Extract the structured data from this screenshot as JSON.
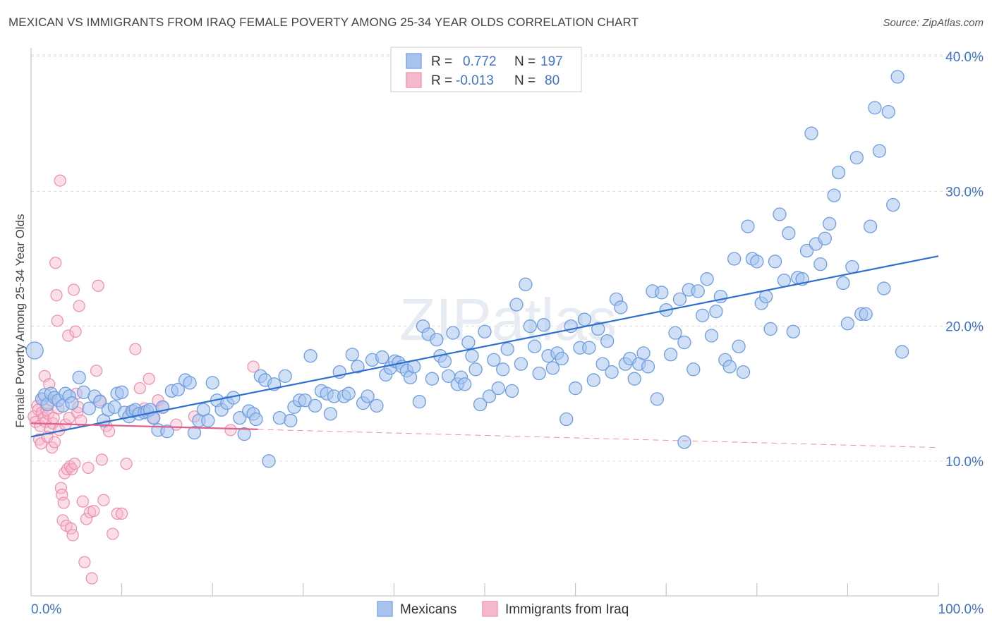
{
  "title": "MEXICAN VS IMMIGRANTS FROM IRAQ FEMALE POVERTY AMONG 25-34 YEAR OLDS CORRELATION CHART",
  "source": "Source: ZipAtlas.com",
  "watermark": "ZIPatlas",
  "colors": {
    "mexicans_fill": "#a8c4ee",
    "mexicans_stroke": "#6f9de0",
    "mexicans_line": "#2f6fd0",
    "iraq_fill": "#f6b9cb",
    "iraq_stroke": "#ec8eab",
    "iraq_line": "#e0608a",
    "tick_label": "#3f72c9",
    "grid": "#dddddd"
  },
  "legend": {
    "rows": [
      {
        "r_label": "R =",
        "r_value": "0.772",
        "n_label": "N =",
        "n_value": "197"
      },
      {
        "r_label": "R =",
        "r_value": "-0.013",
        "n_label": "N =",
        "n_value": "80"
      }
    ]
  },
  "chart_data": {
    "type": "scatter",
    "title": "MEXICAN VS IMMIGRANTS FROM IRAQ FEMALE POVERTY AMONG 25-34 YEAR OLDS CORRELATION CHART",
    "xlabel": "",
    "ylabel": "Female Poverty Among 25-34 Year Olds",
    "xlim": [
      0,
      100
    ],
    "ylim": [
      0,
      40
    ],
    "x_tick_labels": [
      "0.0%",
      "100.0%"
    ],
    "y_ticks": [
      10,
      20,
      30,
      40
    ],
    "y_tick_labels": [
      "10.0%",
      "20.0%",
      "30.0%",
      "40.0%"
    ],
    "grid": true,
    "legend_position": "top-center",
    "series": [
      {
        "name": "Mexicans",
        "r": 0.772,
        "n": 197,
        "trend": {
          "x": [
            0,
            100
          ],
          "y": [
            11.8,
            25.2
          ]
        },
        "points": [
          [
            0.4,
            18.2
          ],
          [
            1.2,
            14.6
          ],
          [
            1.5,
            14.9
          ],
          [
            1.8,
            14.2
          ],
          [
            2.2,
            15.0
          ],
          [
            2.6,
            14.7
          ],
          [
            3.0,
            14.5
          ],
          [
            3.5,
            14.1
          ],
          [
            3.8,
            15.0
          ],
          [
            4.2,
            14.8
          ],
          [
            4.5,
            14.3
          ],
          [
            5.3,
            16.2
          ],
          [
            5.8,
            15.1
          ],
          [
            6.4,
            13.9
          ],
          [
            7.0,
            14.8
          ],
          [
            7.6,
            14.4
          ],
          [
            8.0,
            13.0
          ],
          [
            8.5,
            13.8
          ],
          [
            9.2,
            14.0
          ],
          [
            9.5,
            15.0
          ],
          [
            10.0,
            15.1
          ],
          [
            10.3,
            13.6
          ],
          [
            10.8,
            13.3
          ],
          [
            11.2,
            13.7
          ],
          [
            11.5,
            13.8
          ],
          [
            11.9,
            13.5
          ],
          [
            12.5,
            13.6
          ],
          [
            12.8,
            13.7
          ],
          [
            13.1,
            13.8
          ],
          [
            13.5,
            13.2
          ],
          [
            14.0,
            12.3
          ],
          [
            14.5,
            14.0
          ],
          [
            15.0,
            12.2
          ],
          [
            15.5,
            15.2
          ],
          [
            16.2,
            15.3
          ],
          [
            17.0,
            16.0
          ],
          [
            17.5,
            15.8
          ],
          [
            18.0,
            12.1
          ],
          [
            18.5,
            13.0
          ],
          [
            19.0,
            13.8
          ],
          [
            19.5,
            13.0
          ],
          [
            20.0,
            15.8
          ],
          [
            20.5,
            14.5
          ],
          [
            21.0,
            13.8
          ],
          [
            21.6,
            14.3
          ],
          [
            22.3,
            14.7
          ],
          [
            23.0,
            13.2
          ],
          [
            23.5,
            12.0
          ],
          [
            24.0,
            13.7
          ],
          [
            24.5,
            13.5
          ],
          [
            24.8,
            13.1
          ],
          [
            25.3,
            16.3
          ],
          [
            25.8,
            16.0
          ],
          [
            26.2,
            10.0
          ],
          [
            26.8,
            15.7
          ],
          [
            27.4,
            13.2
          ],
          [
            28.0,
            16.3
          ],
          [
            28.6,
            13.0
          ],
          [
            29.0,
            14.0
          ],
          [
            29.6,
            14.5
          ],
          [
            30.2,
            14.5
          ],
          [
            30.8,
            17.8
          ],
          [
            31.3,
            14.1
          ],
          [
            32.0,
            15.2
          ],
          [
            32.6,
            15.0
          ],
          [
            33.0,
            13.5
          ],
          [
            33.4,
            14.8
          ],
          [
            34.0,
            16.6
          ],
          [
            34.5,
            14.8
          ],
          [
            35.0,
            15.0
          ],
          [
            35.4,
            17.9
          ],
          [
            36.0,
            17.0
          ],
          [
            36.6,
            14.3
          ],
          [
            37.1,
            14.8
          ],
          [
            37.6,
            17.5
          ],
          [
            38.1,
            14.1
          ],
          [
            38.7,
            17.7
          ],
          [
            39.1,
            16.4
          ],
          [
            39.6,
            16.9
          ],
          [
            40.1,
            17.4
          ],
          [
            40.5,
            17.3
          ],
          [
            40.9,
            17.0
          ],
          [
            41.4,
            16.7
          ],
          [
            41.8,
            16.2
          ],
          [
            42.2,
            17.0
          ],
          [
            42.8,
            14.4
          ],
          [
            43.2,
            20.0
          ],
          [
            43.8,
            19.4
          ],
          [
            44.2,
            16.1
          ],
          [
            44.7,
            19.0
          ],
          [
            45.1,
            17.8
          ],
          [
            45.6,
            17.4
          ],
          [
            46.0,
            16.3
          ],
          [
            46.5,
            19.5
          ],
          [
            47.0,
            15.7
          ],
          [
            47.4,
            16.2
          ],
          [
            47.8,
            15.7
          ],
          [
            48.2,
            18.8
          ],
          [
            48.6,
            17.8
          ],
          [
            49.0,
            16.8
          ],
          [
            49.5,
            14.2
          ],
          [
            50.0,
            19.6
          ],
          [
            50.5,
            14.8
          ],
          [
            51.0,
            17.5
          ],
          [
            51.5,
            15.4
          ],
          [
            52.0,
            16.8
          ],
          [
            52.5,
            18.3
          ],
          [
            53.0,
            15.2
          ],
          [
            53.5,
            21.6
          ],
          [
            54.0,
            17.2
          ],
          [
            54.5,
            23.1
          ],
          [
            55.0,
            20.0
          ],
          [
            55.5,
            18.5
          ],
          [
            56.0,
            16.5
          ],
          [
            56.5,
            20.1
          ],
          [
            57.0,
            17.8
          ],
          [
            57.5,
            16.9
          ],
          [
            58.0,
            18.0
          ],
          [
            58.5,
            17.6
          ],
          [
            59.0,
            13.1
          ],
          [
            59.5,
            20.0
          ],
          [
            60.0,
            15.4
          ],
          [
            60.5,
            18.4
          ],
          [
            61.0,
            20.5
          ],
          [
            61.5,
            18.4
          ],
          [
            62.0,
            16.0
          ],
          [
            62.5,
            19.8
          ],
          [
            63.0,
            17.2
          ],
          [
            63.5,
            18.9
          ],
          [
            64.0,
            16.6
          ],
          [
            64.5,
            22.0
          ],
          [
            65.0,
            21.4
          ],
          [
            65.5,
            17.2
          ],
          [
            66.0,
            17.6
          ],
          [
            66.5,
            16.1
          ],
          [
            67.0,
            17.2
          ],
          [
            67.5,
            18.0
          ],
          [
            68.0,
            17.0
          ],
          [
            68.5,
            22.6
          ],
          [
            69.0,
            14.6
          ],
          [
            69.5,
            22.5
          ],
          [
            70.0,
            21.2
          ],
          [
            70.5,
            17.9
          ],
          [
            71.0,
            19.5
          ],
          [
            71.5,
            22.0
          ],
          [
            72.0,
            18.8
          ],
          [
            72.5,
            22.7
          ],
          [
            73.0,
            16.8
          ],
          [
            73.5,
            22.6
          ],
          [
            74.0,
            20.8
          ],
          [
            74.5,
            23.5
          ],
          [
            75.0,
            19.3
          ],
          [
            75.5,
            21.1
          ],
          [
            76.0,
            22.2
          ],
          [
            76.5,
            17.5
          ],
          [
            77.0,
            17.0
          ],
          [
            77.5,
            25.0
          ],
          [
            78.0,
            18.5
          ],
          [
            78.5,
            16.6
          ],
          [
            79.0,
            27.4
          ],
          [
            79.5,
            25.0
          ],
          [
            80.0,
            24.8
          ],
          [
            80.5,
            21.7
          ],
          [
            81.0,
            22.2
          ],
          [
            81.5,
            19.8
          ],
          [
            82.0,
            24.8
          ],
          [
            82.5,
            28.3
          ],
          [
            83.0,
            23.4
          ],
          [
            83.5,
            26.9
          ],
          [
            84.0,
            19.6
          ],
          [
            84.5,
            23.6
          ],
          [
            85.0,
            23.5
          ],
          [
            85.5,
            25.6
          ],
          [
            86.0,
            34.3
          ],
          [
            86.5,
            26.1
          ],
          [
            87.0,
            24.6
          ],
          [
            87.5,
            26.5
          ],
          [
            88.0,
            27.6
          ],
          [
            88.5,
            29.7
          ],
          [
            89.0,
            31.4
          ],
          [
            89.5,
            23.2
          ],
          [
            90.0,
            20.2
          ],
          [
            90.5,
            24.4
          ],
          [
            91.0,
            32.5
          ],
          [
            91.5,
            20.9
          ],
          [
            92.0,
            20.9
          ],
          [
            92.5,
            27.4
          ],
          [
            93.0,
            36.2
          ],
          [
            93.5,
            33.0
          ],
          [
            94.0,
            22.8
          ],
          [
            94.5,
            35.9
          ],
          [
            95.0,
            29.0
          ],
          [
            95.5,
            38.5
          ],
          [
            96.0,
            18.1
          ],
          [
            72.0,
            11.4
          ]
        ]
      },
      {
        "name": "Immigrants from Iraq",
        "r": -0.013,
        "n": 80,
        "trend": {
          "x": [
            0,
            100
          ],
          "y": [
            12.8,
            11.0
          ]
        },
        "trend_solid_until": 25,
        "points": [
          [
            0.3,
            13.3
          ],
          [
            0.5,
            12.9
          ],
          [
            0.7,
            14.1
          ],
          [
            0.8,
            13.8
          ],
          [
            0.9,
            11.6
          ],
          [
            1.0,
            12.6
          ],
          [
            1.1,
            11.3
          ],
          [
            1.2,
            13.6
          ],
          [
            1.3,
            14.6
          ],
          [
            1.4,
            13.2
          ],
          [
            1.5,
            16.3
          ],
          [
            1.6,
            12.9
          ],
          [
            1.7,
            13.8
          ],
          [
            1.8,
            11.8
          ],
          [
            1.9,
            13.5
          ],
          [
            2.0,
            15.7
          ],
          [
            2.1,
            12.4
          ],
          [
            2.2,
            14.5
          ],
          [
            2.3,
            11.0
          ],
          [
            2.4,
            12.8
          ],
          [
            2.5,
            13.2
          ],
          [
            2.6,
            11.4
          ],
          [
            2.7,
            24.7
          ],
          [
            2.8,
            22.3
          ],
          [
            2.9,
            20.4
          ],
          [
            3.0,
            13.9
          ],
          [
            3.1,
            12.3
          ],
          [
            3.2,
            30.8
          ],
          [
            3.3,
            8.0
          ],
          [
            3.4,
            7.5
          ],
          [
            3.5,
            5.6
          ],
          [
            3.6,
            6.9
          ],
          [
            3.7,
            9.1
          ],
          [
            3.8,
            12.7
          ],
          [
            3.9,
            5.2
          ],
          [
            4.0,
            9.4
          ],
          [
            4.1,
            19.3
          ],
          [
            4.2,
            13.2
          ],
          [
            4.3,
            9.6
          ],
          [
            4.4,
            5.0
          ],
          [
            4.5,
            9.4
          ],
          [
            4.6,
            4.5
          ],
          [
            4.7,
            22.7
          ],
          [
            4.8,
            9.8
          ],
          [
            4.9,
            19.6
          ],
          [
            5.0,
            15.0
          ],
          [
            5.1,
            13.6
          ],
          [
            5.2,
            14.0
          ],
          [
            5.3,
            21.5
          ],
          [
            5.5,
            13.0
          ],
          [
            5.7,
            7.0
          ],
          [
            5.9,
            2.5
          ],
          [
            6.1,
            5.7
          ],
          [
            6.3,
            9.5
          ],
          [
            6.5,
            6.2
          ],
          [
            6.7,
            1.3
          ],
          [
            6.9,
            6.3
          ],
          [
            7.2,
            16.7
          ],
          [
            7.4,
            23.0
          ],
          [
            7.6,
            14.5
          ],
          [
            7.8,
            10.1
          ],
          [
            8.0,
            7.1
          ],
          [
            8.3,
            12.6
          ],
          [
            8.6,
            12.2
          ],
          [
            9.0,
            4.6
          ],
          [
            9.5,
            6.1
          ],
          [
            10.0,
            6.1
          ],
          [
            10.5,
            9.8
          ],
          [
            11.0,
            13.7
          ],
          [
            11.5,
            18.3
          ],
          [
            12.0,
            15.4
          ],
          [
            12.5,
            13.9
          ],
          [
            13.0,
            16.1
          ],
          [
            13.5,
            13.2
          ],
          [
            14.0,
            14.5
          ],
          [
            14.6,
            14.0
          ],
          [
            16.0,
            12.7
          ],
          [
            18.0,
            13.3
          ],
          [
            22.0,
            12.3
          ],
          [
            24.5,
            17.0
          ]
        ]
      }
    ]
  },
  "bottom_legend": {
    "items": [
      "Mexicans",
      "Immigrants from Iraq"
    ]
  }
}
